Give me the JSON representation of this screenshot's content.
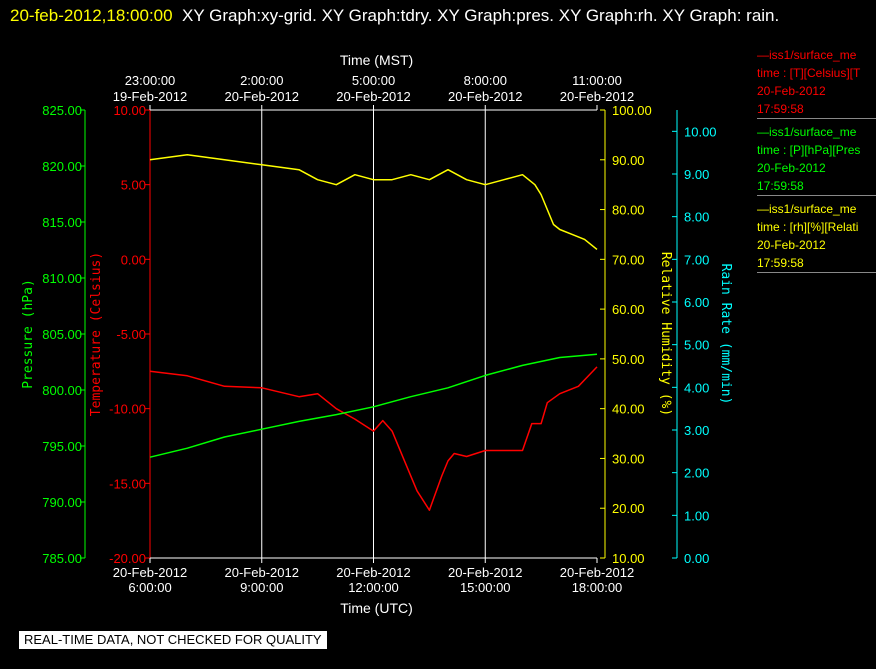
{
  "title": {
    "stamp": "20-feb-2012,18:00:00",
    "text": "XY Graph:xy-grid.  XY Graph:tdry.  XY Graph:pres.  XY Graph:rh.  XY Graph: rain."
  },
  "colors": {
    "background": "#000000",
    "pressure": "#00ff00",
    "temperature": "#ff0000",
    "humidity": "#ffff00",
    "rain": "#00ffff",
    "grid": "#ffffff"
  },
  "banner": "REAL-TIME DATA, NOT CHECKED FOR QUALITY",
  "legend": [
    {
      "line": "—iss1/surface_me",
      "field": "time : [T][Celsius][T",
      "date": "20-Feb-2012",
      "time": "17:59:58",
      "color": "#ff0000"
    },
    {
      "line": "—iss1/surface_me",
      "field": "time : [P][hPa][Pres",
      "date": "20-Feb-2012",
      "time": "17:59:58",
      "color": "#00ff00"
    },
    {
      "line": "—iss1/surface_me",
      "field": "time : [rh][%][Relati",
      "date": "20-Feb-2012",
      "time": "17:59:58",
      "color": "#ffff00"
    }
  ],
  "chart_data": {
    "type": "line",
    "x_bottom": {
      "label": "Time (UTC)",
      "range": [
        "20-Feb-2012 06:00",
        "20-Feb-2012 18:00"
      ],
      "ticks": [
        {
          "t": "06:00",
          "date": "20-Feb-2012",
          "time": "6:00:00"
        },
        {
          "t": "09:00",
          "date": "20-Feb-2012",
          "time": "9:00:00"
        },
        {
          "t": "12:00",
          "date": "20-Feb-2012",
          "time": "12:00:00"
        },
        {
          "t": "15:00",
          "date": "20-Feb-2012",
          "time": "15:00:00"
        },
        {
          "t": "18:00",
          "date": "20-Feb-2012",
          "time": "18:00:00"
        }
      ]
    },
    "x_top": {
      "label": "Time (MST)",
      "ticks": [
        {
          "t": "06:00",
          "time": "23:00:00",
          "date": "19-Feb-2012"
        },
        {
          "t": "09:00",
          "time": "2:00:00",
          "date": "20-Feb-2012"
        },
        {
          "t": "12:00",
          "time": "5:00:00",
          "date": "20-Feb-2012"
        },
        {
          "t": "15:00",
          "time": "8:00:00",
          "date": "20-Feb-2012"
        },
        {
          "t": "18:00",
          "time": "11:00:00",
          "date": "20-Feb-2012"
        }
      ]
    },
    "axes": {
      "pressure": {
        "label": "Pressure (hPa)",
        "range": [
          785,
          825
        ],
        "ticks": [
          "785.00",
          "790.00",
          "795.00",
          "800.00",
          "805.00",
          "810.00",
          "815.00",
          "820.00",
          "825.00"
        ]
      },
      "temperature": {
        "label": "Temperature (Celsius)",
        "range": [
          -20,
          10
        ],
        "ticks": [
          "-20.00",
          "-15.00",
          "-10.00",
          "-5.00",
          "0.00",
          "5.00",
          "10.00"
        ]
      },
      "humidity": {
        "label": "Relative Humidity (%)",
        "range": [
          10,
          100
        ],
        "ticks": [
          "10.00",
          "20.00",
          "30.00",
          "40.00",
          "50.00",
          "60.00",
          "70.00",
          "80.00",
          "90.00",
          "100.00"
        ]
      },
      "rain": {
        "label": "Rain Rate (mm/min)",
        "range": [
          0,
          10.5
        ],
        "ticks": [
          "0.00",
          "1.00",
          "2.00",
          "3.00",
          "4.00",
          "5.00",
          "6.00",
          "7.00",
          "8.00",
          "9.00",
          "10.00"
        ]
      }
    },
    "grid": true,
    "series": [
      {
        "axis": "humidity",
        "x": [
          "06:00",
          "07:00",
          "08:00",
          "09:00",
          "10:00",
          "10:30",
          "11:00",
          "11:30",
          "12:00",
          "12:30",
          "13:00",
          "13:30",
          "14:00",
          "14:30",
          "15:00",
          "15:30",
          "16:00",
          "16:20",
          "16:30",
          "16:50",
          "17:00",
          "17:20",
          "17:40",
          "18:00"
        ],
        "values": [
          90,
          91,
          90,
          89,
          88,
          86,
          85,
          87,
          86,
          86,
          87,
          86,
          88,
          86,
          85,
          86,
          87,
          85,
          83,
          77,
          76,
          75,
          74,
          72
        ]
      },
      {
        "axis": "temperature",
        "x": [
          "06:00",
          "07:00",
          "08:00",
          "09:00",
          "10:00",
          "10:30",
          "11:00",
          "11:30",
          "12:00",
          "12:15",
          "12:30",
          "12:50",
          "13:10",
          "13:30",
          "13:50",
          "14:00",
          "14:10",
          "14:30",
          "15:00",
          "15:30",
          "16:00",
          "16:15",
          "16:30",
          "16:40",
          "17:00",
          "17:30",
          "18:00"
        ],
        "values": [
          -7.5,
          -7.8,
          -8.5,
          -8.6,
          -9.2,
          -9.0,
          -10.0,
          -10.7,
          -11.5,
          -10.8,
          -11.5,
          -13.5,
          -15.5,
          -16.8,
          -14.5,
          -13.5,
          -13.0,
          -13.2,
          -12.8,
          -12.8,
          -12.8,
          -11.0,
          -11.0,
          -9.6,
          -9.0,
          -8.5,
          -7.2
        ]
      },
      {
        "axis": "pressure",
        "x": [
          "06:00",
          "07:00",
          "08:00",
          "09:00",
          "10:00",
          "11:00",
          "12:00",
          "13:00",
          "14:00",
          "15:00",
          "16:00",
          "17:00",
          "18:00"
        ],
        "values": [
          794.0,
          794.8,
          795.8,
          796.5,
          797.2,
          797.8,
          798.5,
          799.4,
          800.2,
          801.3,
          802.2,
          802.9,
          803.2
        ]
      }
    ]
  }
}
